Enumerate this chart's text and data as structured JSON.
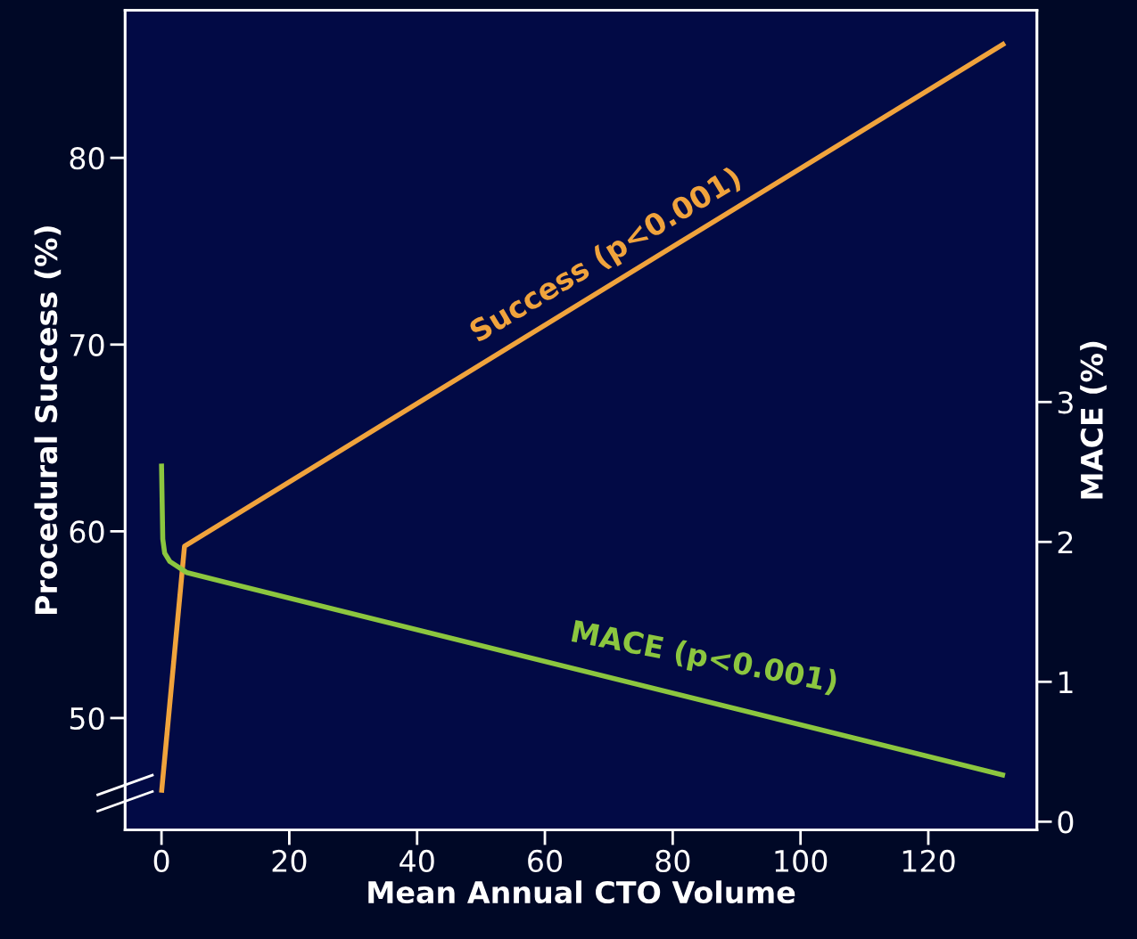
{
  "chart_data": {
    "type": "line",
    "xlabel": "Mean Annual CTO Volume",
    "ylabel": "Procedural Success (%)",
    "y2label": "MACE (%)",
    "xlim": [
      -5.7,
      137
    ],
    "xticks": [
      0,
      20,
      40,
      60,
      80,
      100,
      120
    ],
    "ylim": [
      44,
      87.9
    ],
    "yticks": [
      50,
      60,
      70,
      80
    ],
    "y2lim": [
      -0.06,
      5.8
    ],
    "y2ticks": [
      0,
      1,
      2,
      3
    ],
    "grid": false,
    "legend": false,
    "marker": "none",
    "line_style": "solid",
    "series": [
      {
        "color": "#f0a33c",
        "x": [
          0,
          3.6,
          132
        ],
        "values": [
          46.0,
          59.2,
          86.15
        ]
      },
      {
        "color": "#8cc63f",
        "axis": "y2",
        "x": [
          0,
          0.2,
          0.5,
          1.3,
          4,
          132
        ],
        "values": [
          2.56,
          2.02,
          1.92,
          1.86,
          1.78,
          0.33
        ]
      }
    ],
    "annotations": [
      "Success (p<0.001)",
      "MACE (p<0.001)"
    ]
  }
}
